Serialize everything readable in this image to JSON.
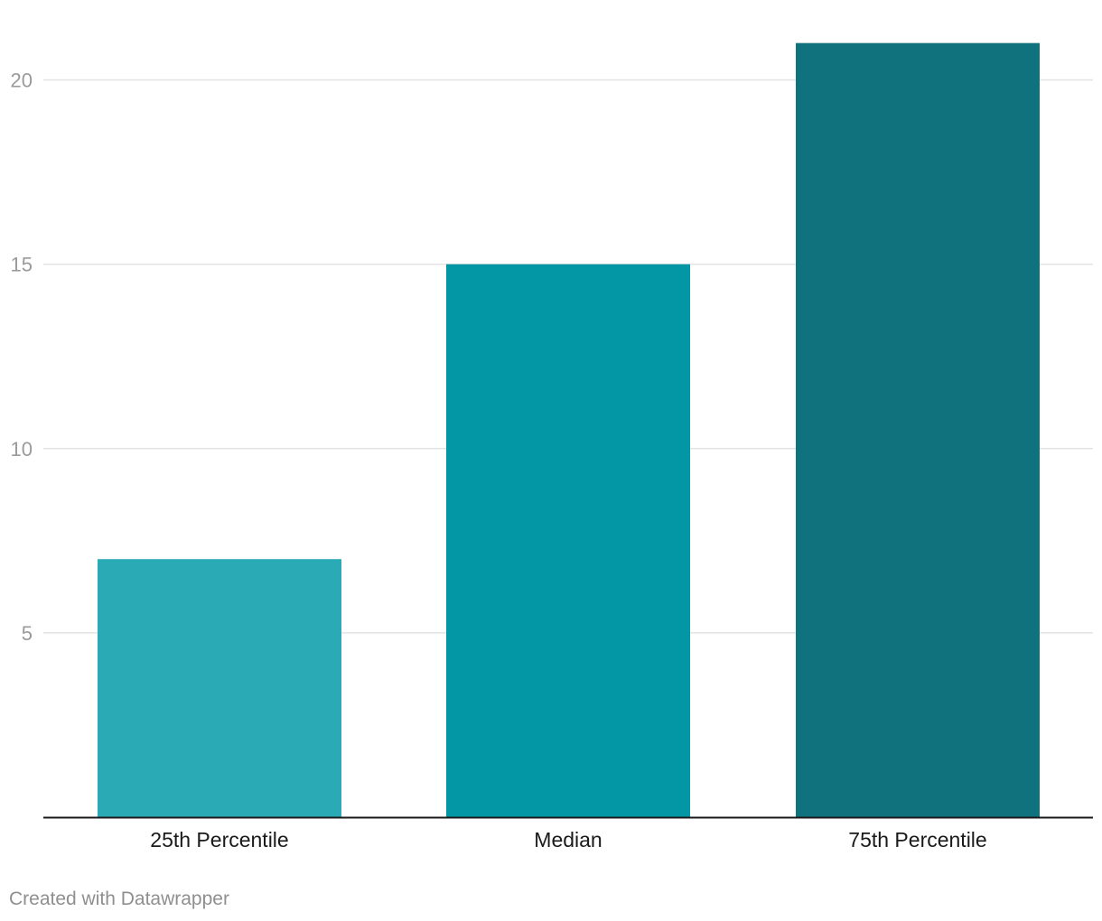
{
  "chart_data": {
    "type": "bar",
    "categories": [
      "25th Percentile",
      "Median",
      "75th Percentile"
    ],
    "values": [
      7,
      15,
      21
    ],
    "colors": [
      "#29aab5",
      "#0396a4",
      "#0f727d"
    ],
    "yticks": [
      5,
      10,
      15,
      20
    ],
    "ylim": [
      0,
      21
    ],
    "grid": true,
    "title": "",
    "xlabel": "",
    "ylabel": ""
  },
  "footer": {
    "credit": "Created with Datawrapper"
  },
  "style": {
    "grid_color": "#e3e3e3",
    "baseline_color": "#1a1a1a",
    "tick_color": "#9a9a9a"
  }
}
